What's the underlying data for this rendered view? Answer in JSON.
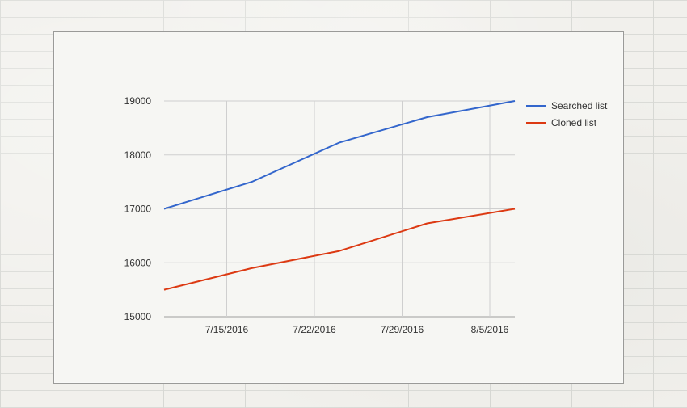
{
  "chart_data": {
    "type": "line",
    "title": "",
    "xlabel": "",
    "ylabel": "",
    "x": [
      "7/10/2016",
      "7/17/2016",
      "7/24/2016",
      "7/31/2016",
      "8/7/2016"
    ],
    "x_ticks": [
      "7/15/2016",
      "7/22/2016",
      "7/29/2016",
      "8/5/2016"
    ],
    "y_ticks": [
      "15000",
      "16000",
      "17000",
      "18000",
      "19000"
    ],
    "ylim": [
      15000,
      19000
    ],
    "xlim": [
      "7/10/2016",
      "8/7/2016"
    ],
    "grid": true,
    "legend_position": "right",
    "series": [
      {
        "name": "Searched list",
        "color": "#3366cc",
        "points": [
          {
            "x": "7/10/2016",
            "y": 17000
          },
          {
            "x": "7/17/2016",
            "y": 17500
          },
          {
            "x": "7/24/2016",
            "y": 18230
          },
          {
            "x": "7/31/2016",
            "y": 18700
          },
          {
            "x": "8/7/2016",
            "y": 19000
          }
        ]
      },
      {
        "name": "Cloned list",
        "color": "#dc3912",
        "points": [
          {
            "x": "7/10/2016",
            "y": 15500
          },
          {
            "x": "7/17/2016",
            "y": 15900
          },
          {
            "x": "7/24/2016",
            "y": 16220
          },
          {
            "x": "7/31/2016",
            "y": 16730
          },
          {
            "x": "8/7/2016",
            "y": 17000
          }
        ]
      }
    ]
  }
}
